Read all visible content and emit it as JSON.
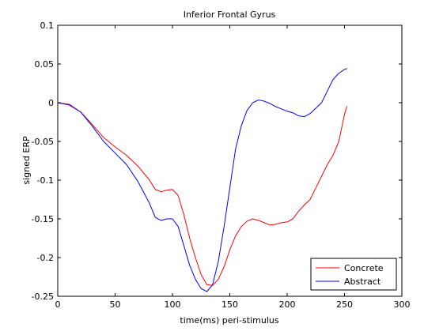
{
  "chart_data": {
    "type": "line",
    "title": "Inferior Frontal Gyrus",
    "xlabel": "time(ms) peri-stimulus",
    "ylabel": "signed ERP",
    "xlim": [
      0,
      300
    ],
    "ylim": [
      -0.25,
      0.1
    ],
    "xticks": [
      0,
      50,
      100,
      150,
      200,
      250,
      300
    ],
    "yticks": [
      -0.25,
      -0.2,
      -0.15,
      -0.1,
      -0.05,
      0,
      0.05,
      0.1
    ],
    "xtick_labels": [
      "0",
      "50",
      "100",
      "150",
      "200",
      "250",
      "300"
    ],
    "ytick_labels": [
      "-0.25",
      "-0.2",
      "-0.15",
      "-0.1",
      "-0.05",
      "0",
      "0.05",
      "0.1"
    ],
    "grid": false,
    "legend_position": "bottom-right",
    "series": [
      {
        "name": "Concrete",
        "color": "#ff0000",
        "x": [
          0,
          10,
          20,
          30,
          40,
          50,
          60,
          70,
          80,
          85,
          90,
          95,
          100,
          105,
          110,
          115,
          120,
          125,
          130,
          135,
          140,
          145,
          150,
          155,
          160,
          165,
          170,
          175,
          180,
          185,
          190,
          195,
          200,
          205,
          210,
          215,
          220,
          225,
          230,
          235,
          240,
          245,
          250,
          252
        ],
        "y": [
          0,
          -0.002,
          -0.012,
          -0.028,
          -0.045,
          -0.057,
          -0.068,
          -0.082,
          -0.1,
          -0.112,
          -0.115,
          -0.113,
          -0.112,
          -0.12,
          -0.145,
          -0.175,
          -0.2,
          -0.222,
          -0.235,
          -0.236,
          -0.228,
          -0.212,
          -0.19,
          -0.172,
          -0.16,
          -0.153,
          -0.15,
          -0.152,
          -0.155,
          -0.158,
          -0.157,
          -0.155,
          -0.154,
          -0.15,
          -0.14,
          -0.132,
          -0.125,
          -0.11,
          -0.095,
          -0.08,
          -0.068,
          -0.05,
          -0.015,
          -0.005
        ]
      },
      {
        "name": "Abstract",
        "color": "#0000ff",
        "x": [
          0,
          10,
          20,
          30,
          40,
          50,
          60,
          70,
          80,
          85,
          90,
          95,
          100,
          105,
          110,
          115,
          120,
          125,
          130,
          135,
          140,
          145,
          150,
          155,
          160,
          165,
          170,
          175,
          180,
          185,
          190,
          195,
          200,
          205,
          210,
          215,
          220,
          225,
          230,
          235,
          240,
          245,
          250,
          252
        ],
        "y": [
          0,
          -0.003,
          -0.012,
          -0.03,
          -0.05,
          -0.065,
          -0.08,
          -0.102,
          -0.13,
          -0.148,
          -0.152,
          -0.15,
          -0.15,
          -0.16,
          -0.185,
          -0.21,
          -0.228,
          -0.24,
          -0.244,
          -0.235,
          -0.205,
          -0.16,
          -0.11,
          -0.06,
          -0.03,
          -0.01,
          0.0,
          0.0035,
          0.002,
          -0.001,
          -0.005,
          -0.008,
          -0.011,
          -0.013,
          -0.017,
          -0.018,
          -0.014,
          -0.007,
          0.0,
          0.015,
          0.03,
          0.038,
          0.043,
          0.044
        ]
      }
    ]
  }
}
